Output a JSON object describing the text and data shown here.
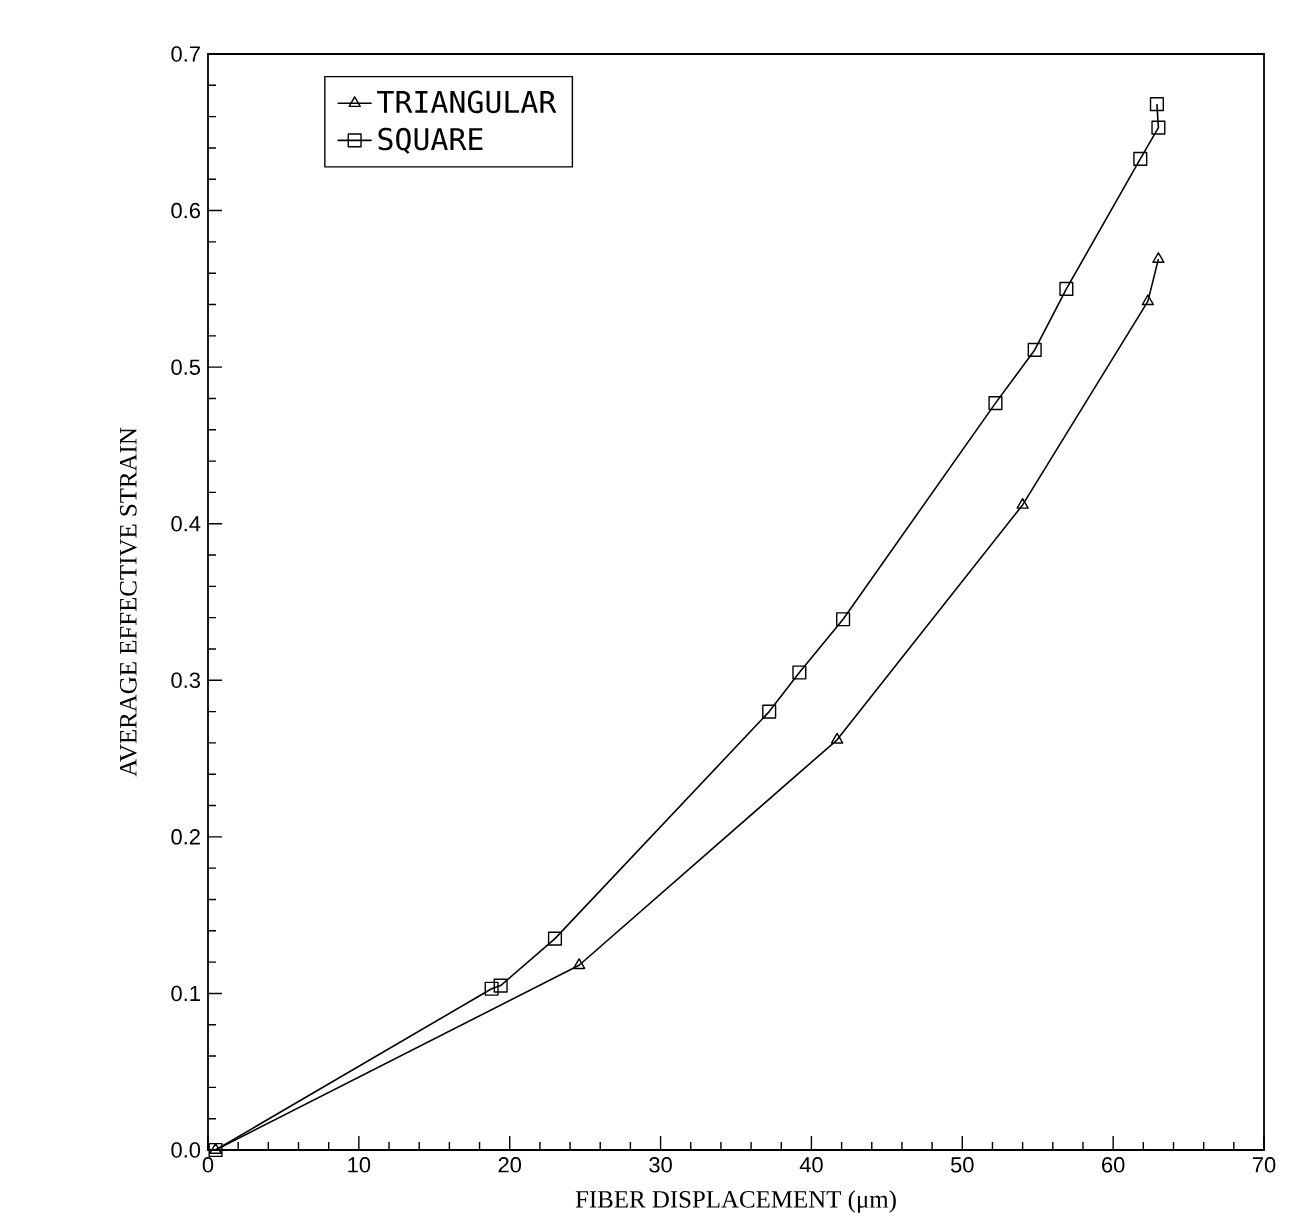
{
  "chart_data": {
    "type": "line",
    "xlabel": "FIBER DISPLACEMENT (μm)",
    "ylabel": "AVERAGE EFFECTIVE STRAIN",
    "xlim": [
      0,
      70
    ],
    "ylim": [
      0,
      0.7
    ],
    "xticks": [
      0,
      10,
      20,
      30,
      40,
      50,
      60,
      70
    ],
    "yticks": [
      {
        "value": 0,
        "label": "0.0"
      },
      0.1,
      0.2,
      0.3,
      0.4,
      0.5,
      0.6,
      0.7
    ],
    "legend": "top left",
    "grid": false,
    "series": [
      {
        "name": "TRIANGULAR",
        "color": "#000000",
        "marker": "triangle",
        "x": [
          0.5,
          24.6,
          41.7,
          54.0,
          62.3,
          63.0
        ],
        "values": [
          0.0,
          0.118,
          0.262,
          0.412,
          0.542,
          0.569
        ]
      },
      {
        "name": "SQUARE",
        "color": "#000000",
        "marker": "square",
        "x": [
          0.5,
          18.8,
          19.4,
          23.0,
          37.2,
          39.2,
          42.1,
          52.2,
          54.8,
          56.9,
          61.8,
          63.0,
          62.9
        ],
        "values": [
          0.0,
          0.103,
          0.105,
          0.135,
          0.28,
          0.305,
          0.339,
          0.477,
          0.511,
          0.55,
          0.633,
          0.653,
          0.668
        ]
      }
    ]
  }
}
